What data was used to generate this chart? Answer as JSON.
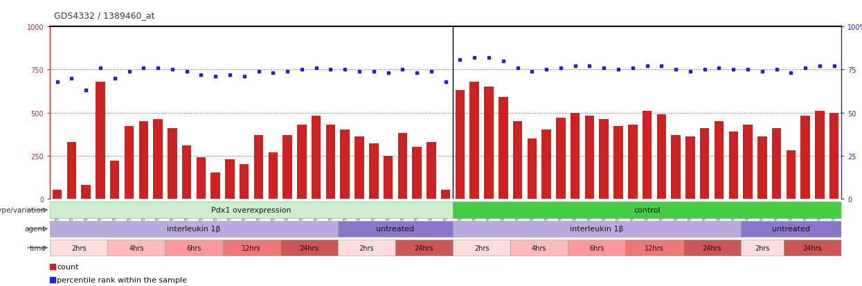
{
  "title": "GDS4332 / 1389460_at",
  "samples": [
    "GSM998740",
    "GSM998753",
    "GSM998774",
    "GSM998729",
    "GSM998754",
    "GSM998767",
    "GSM998775",
    "GSM998741",
    "GSM998755",
    "GSM998768",
    "GSM998776",
    "GSM998730",
    "GSM998742",
    "GSM998747",
    "GSM998777",
    "GSM998731",
    "GSM998748",
    "GSM998756",
    "GSM998769",
    "GSM998732",
    "GSM998749",
    "GSM998757",
    "GSM998778",
    "GSM998733",
    "GSM998758",
    "GSM998770",
    "GSM998779",
    "GSM998734",
    "GSM998743",
    "GSM998759",
    "GSM998780",
    "GSM998735",
    "GSM998750",
    "GSM998760",
    "GSM998782",
    "GSM998744",
    "GSM998751",
    "GSM998761",
    "GSM998771",
    "GSM998736",
    "GSM998745",
    "GSM998762",
    "GSM998781",
    "GSM998737",
    "GSM998752",
    "GSM998763",
    "GSM998772",
    "GSM998738",
    "GSM998764",
    "GSM998773",
    "GSM998783",
    "GSM998739",
    "GSM998746",
    "GSM998765",
    "GSM998784"
  ],
  "counts": [
    50,
    330,
    80,
    680,
    220,
    420,
    450,
    460,
    410,
    310,
    240,
    150,
    230,
    200,
    370,
    270,
    370,
    430,
    480,
    430,
    400,
    360,
    320,
    250,
    380,
    300,
    330,
    50,
    630,
    680,
    650,
    590,
    450,
    350,
    400,
    470,
    500,
    480,
    460,
    420,
    430,
    510,
    490,
    370,
    360,
    410,
    450,
    390,
    430,
    360,
    410,
    280,
    480,
    510,
    500
  ],
  "percentiles": [
    68,
    70,
    63,
    76,
    70,
    74,
    76,
    76,
    75,
    74,
    72,
    71,
    72,
    71,
    74,
    73,
    74,
    75,
    76,
    75,
    75,
    74,
    74,
    73,
    75,
    73,
    74,
    68,
    81,
    82,
    82,
    80,
    76,
    74,
    75,
    76,
    77,
    77,
    76,
    75,
    76,
    77,
    77,
    75,
    74,
    75,
    76,
    75,
    75,
    74,
    75,
    73,
    76,
    77,
    77
  ],
  "bar_color": "#cc2222",
  "dot_color": "#2222cc",
  "background_color": "#ffffff",
  "left_yticks": [
    0,
    250,
    500,
    750,
    1000
  ],
  "right_yticks": [
    0,
    25,
    50,
    75,
    100
  ],
  "left_ylim": [
    0,
    1000
  ],
  "right_ylim": [
    0,
    100
  ],
  "separator_index": 28,
  "genotype_groups": [
    {
      "label": "Pdx1 overexpression",
      "start": 0,
      "end": 28,
      "color": "#cceecc"
    },
    {
      "label": "control",
      "start": 28,
      "end": 55,
      "color": "#44cc44"
    }
  ],
  "agent_groups": [
    {
      "label": "interleukin 1β",
      "start": 0,
      "end": 20,
      "color": "#bbaadd"
    },
    {
      "label": "untreated",
      "start": 20,
      "end": 28,
      "color": "#8877cc"
    },
    {
      "label": "interleukin 1β",
      "start": 28,
      "end": 48,
      "color": "#bbaadd"
    },
    {
      "label": "untreated",
      "start": 48,
      "end": 55,
      "color": "#8877cc"
    }
  ],
  "time_groups": [
    {
      "label": "2hrs",
      "start": 0,
      "end": 4,
      "color": "#ffdddd"
    },
    {
      "label": "4hrs",
      "start": 4,
      "end": 8,
      "color": "#ffbbbb"
    },
    {
      "label": "6hrs",
      "start": 8,
      "end": 12,
      "color": "#ff9999"
    },
    {
      "label": "12hrs",
      "start": 12,
      "end": 16,
      "color": "#ee7777"
    },
    {
      "label": "24hrs",
      "start": 16,
      "end": 20,
      "color": "#cc5555"
    },
    {
      "label": "2hrs",
      "start": 20,
      "end": 24,
      "color": "#ffdddd"
    },
    {
      "label": "24hrs",
      "start": 24,
      "end": 28,
      "color": "#cc5555"
    },
    {
      "label": "2hrs",
      "start": 28,
      "end": 32,
      "color": "#ffdddd"
    },
    {
      "label": "4hrs",
      "start": 32,
      "end": 36,
      "color": "#ffbbbb"
    },
    {
      "label": "6hrs",
      "start": 36,
      "end": 40,
      "color": "#ff9999"
    },
    {
      "label": "12hrs",
      "start": 40,
      "end": 44,
      "color": "#ee7777"
    },
    {
      "label": "24hrs",
      "start": 44,
      "end": 48,
      "color": "#cc5555"
    },
    {
      "label": "2hrs",
      "start": 48,
      "end": 51,
      "color": "#ffdddd"
    },
    {
      "label": "24hrs",
      "start": 51,
      "end": 55,
      "color": "#cc5555"
    }
  ],
  "dotted_line_color": "#555555",
  "separator_line_color": "#000000"
}
